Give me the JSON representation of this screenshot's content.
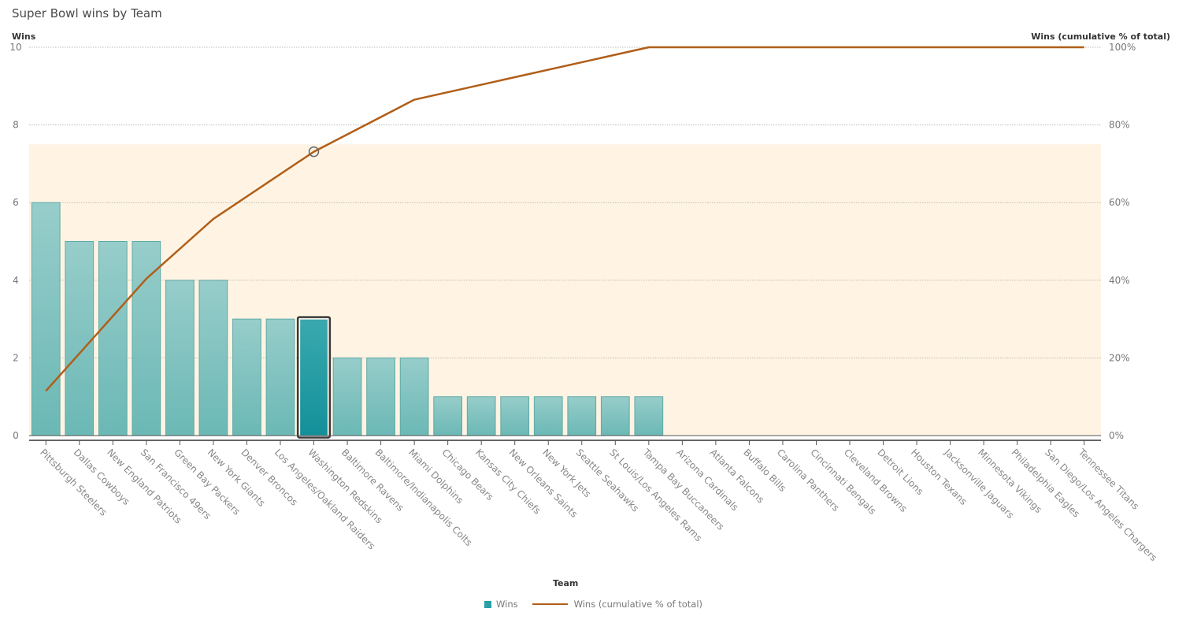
{
  "title": "Super Bowl wins by Team",
  "y_axis_left_title": "Wins",
  "y_axis_right_title": "Wins (cumulative % of total)",
  "x_axis_title": "Team",
  "legend": {
    "bar_label": "Wins",
    "line_label": "Wins (cumulative % of total)"
  },
  "colors": {
    "bar": "#7cc2c0",
    "bar_top": "#97cdca",
    "bar_selected": "#1f979f",
    "line": "#b05e19",
    "band": "#fff4e3",
    "grid": "#bbbbbb"
  },
  "selected_index": 8,
  "chart_data": {
    "type": "bar",
    "title": "Super Bowl wins by Team",
    "xlabel": "Team",
    "ylabel": "Wins",
    "y2label": "Wins (cumulative % of total)",
    "ylim": [
      0,
      10
    ],
    "y2lim": [
      0,
      100
    ],
    "yticks": [
      0,
      2,
      4,
      6,
      8,
      10
    ],
    "y2ticks": [
      "0%",
      "20%",
      "40%",
      "60%",
      "80%",
      "100%"
    ],
    "reference_band": [
      0,
      7.5
    ],
    "grid": true,
    "legend_position": "bottom",
    "categories": [
      "Pittsburgh Steelers",
      "Dallas Cowboys",
      "New England Patriots",
      "San Francisco 49ers",
      "Green Bay Packers",
      "New York Giants",
      "Denver Broncos",
      "Los Angeles/Oakland Raiders",
      "Washington Redskins",
      "Baltimore Ravens",
      "Baltimore/Indianapolis Colts",
      "Miami Dolphins",
      "Chicago Bears",
      "Kansas City Chiefs",
      "New Orleans Saints",
      "New York Jets",
      "Seattle Seahawks",
      "St Louis/Los Angeles Rams",
      "Tampa Bay Buccaneers",
      "Arizona Cardinals",
      "Atlanta Falcons",
      "Buffalo Bills",
      "Carolina Panthers",
      "Cincinnati Bengals",
      "Cleveland Browns",
      "Detroit Lions",
      "Houston Texans",
      "Jacksonville Jaguars",
      "Minnesota Vikings",
      "Philadelphia Eagles",
      "San Diego/Los Angeles Chargers",
      "Tennessee Titans"
    ],
    "series": [
      {
        "name": "Wins",
        "type": "bar",
        "values": [
          6,
          5,
          5,
          5,
          4,
          4,
          3,
          3,
          3,
          2,
          2,
          2,
          1,
          1,
          1,
          1,
          1,
          1,
          1,
          0,
          0,
          0,
          0,
          0,
          0,
          0,
          0,
          0,
          0,
          0,
          0,
          0
        ]
      },
      {
        "name": "Wins (cumulative % of total)",
        "type": "line",
        "axis": "right",
        "points": [
          {
            "index": 0,
            "value": 11.5
          },
          {
            "index": 3,
            "value": 40.4
          },
          {
            "index": 5,
            "value": 55.8
          },
          {
            "index": 8,
            "value": 73.1
          },
          {
            "index": 11,
            "value": 86.5
          },
          {
            "index": 18,
            "value": 100
          },
          {
            "index": 31,
            "value": 100
          }
        ]
      }
    ]
  }
}
